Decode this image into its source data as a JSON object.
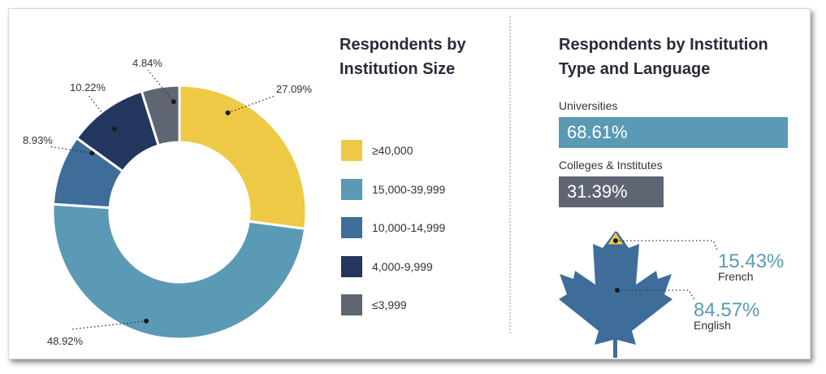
{
  "chart_data": [
    {
      "type": "pie",
      "title": "Respondents by Institution Size",
      "categories": [
        "≥40,000",
        "15,000-39,999",
        "10,000-14,999",
        "4,000-9,999",
        "≤3,999"
      ],
      "values": [
        27.09,
        48.92,
        8.93,
        10.22,
        4.84
      ],
      "value_labels": [
        "27.09%",
        "48.92%",
        "8.93%",
        "10.22%",
        "4.84%"
      ],
      "colors": [
        "#eec945",
        "#5b9ab5",
        "#3f6d99",
        "#22365e",
        "#5f6572"
      ]
    },
    {
      "type": "bar",
      "title": "Respondents by Institution Type and Language",
      "categories": [
        "Universities",
        "Colleges & Institutes"
      ],
      "values": [
        68.61,
        31.39
      ],
      "value_labels": [
        "68.61%",
        "31.39%"
      ],
      "colors": [
        "#5b9ab5",
        "#5f6572"
      ]
    },
    {
      "type": "other",
      "subtype": "pictogram",
      "categories": [
        "French",
        "English"
      ],
      "values": [
        15.43,
        84.57
      ],
      "value_labels": [
        "15.43%",
        "84.57%"
      ],
      "colors": [
        "#eec945",
        "#3f6d99"
      ]
    }
  ]
}
